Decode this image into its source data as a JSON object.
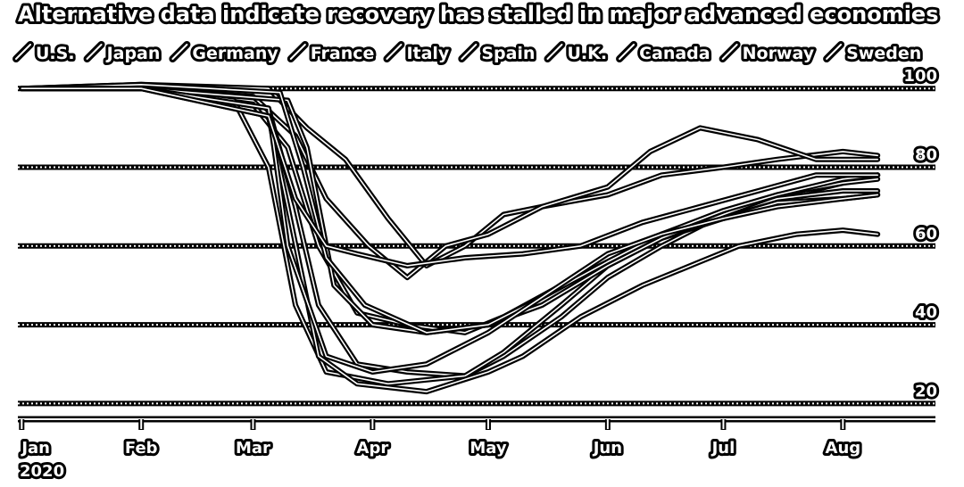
{
  "chart_data": {
    "type": "line",
    "title": "Alternative data indicate recovery has stalled in major advanced economies",
    "xlabel": "",
    "ylabel": "",
    "x_ticks": [
      {
        "label": "Jan",
        "sublabel": "2020",
        "x": "2020-01-01"
      },
      {
        "label": "Feb",
        "x": "2020-02-01"
      },
      {
        "label": "Mar",
        "x": "2020-03-01"
      },
      {
        "label": "Apr",
        "x": "2020-04-01"
      },
      {
        "label": "May",
        "x": "2020-05-01"
      },
      {
        "label": "Jun",
        "x": "2020-06-01"
      },
      {
        "label": "Jul",
        "x": "2020-07-01"
      },
      {
        "label": "Aug",
        "x": "2020-08-01"
      }
    ],
    "xlim": [
      "2019-12-31",
      "2020-08-25"
    ],
    "ylim": [
      16,
      103
    ],
    "y_ticks": [
      20,
      40,
      60,
      80,
      100
    ],
    "grid": true,
    "legend": "top",
    "series": [
      {
        "name": "U.S.",
        "points": [
          [
            "2020-01-01",
            100
          ],
          [
            "2020-02-01",
            101
          ],
          [
            "2020-03-05",
            100
          ],
          [
            "2020-03-15",
            90
          ],
          [
            "2020-03-25",
            82
          ],
          [
            "2020-04-05",
            67
          ],
          [
            "2020-04-15",
            55
          ],
          [
            "2020-04-25",
            60
          ],
          [
            "2020-05-05",
            68
          ],
          [
            "2020-05-15",
            70
          ],
          [
            "2020-06-01",
            73
          ],
          [
            "2020-06-15",
            78
          ],
          [
            "2020-07-01",
            80
          ],
          [
            "2020-07-15",
            82
          ],
          [
            "2020-08-01",
            84
          ],
          [
            "2020-08-10",
            83
          ]
        ]
      },
      {
        "name": "Japan",
        "points": [
          [
            "2020-01-01",
            100
          ],
          [
            "2020-02-01",
            100
          ],
          [
            "2020-03-01",
            98
          ],
          [
            "2020-03-12",
            88
          ],
          [
            "2020-03-20",
            72
          ],
          [
            "2020-03-31",
            60
          ],
          [
            "2020-04-10",
            52
          ],
          [
            "2020-04-20",
            60
          ],
          [
            "2020-05-01",
            63
          ],
          [
            "2020-05-15",
            70
          ],
          [
            "2020-06-01",
            75
          ],
          [
            "2020-06-12",
            84
          ],
          [
            "2020-06-25",
            90
          ],
          [
            "2020-07-10",
            87
          ],
          [
            "2020-07-25",
            82
          ],
          [
            "2020-08-10",
            82
          ]
        ]
      },
      {
        "name": "Germany",
        "points": [
          [
            "2020-01-01",
            100
          ],
          [
            "2020-02-01",
            100
          ],
          [
            "2020-03-01",
            96
          ],
          [
            "2020-03-10",
            85
          ],
          [
            "2020-03-18",
            60
          ],
          [
            "2020-03-28",
            43
          ],
          [
            "2020-04-10",
            40
          ],
          [
            "2020-04-25",
            38
          ],
          [
            "2020-05-05",
            42
          ],
          [
            "2020-05-20",
            50
          ],
          [
            "2020-06-01",
            56
          ],
          [
            "2020-06-15",
            63
          ],
          [
            "2020-07-01",
            68
          ],
          [
            "2020-07-15",
            72
          ],
          [
            "2020-08-01",
            76
          ],
          [
            "2020-08-10",
            78
          ]
        ]
      },
      {
        "name": "France",
        "points": [
          [
            "2020-01-01",
            100
          ],
          [
            "2020-02-01",
            100
          ],
          [
            "2020-03-05",
            95
          ],
          [
            "2020-03-12",
            70
          ],
          [
            "2020-03-18",
            45
          ],
          [
            "2020-03-28",
            30
          ],
          [
            "2020-04-10",
            28
          ],
          [
            "2020-04-25",
            27
          ],
          [
            "2020-05-05",
            32
          ],
          [
            "2020-05-20",
            42
          ],
          [
            "2020-06-01",
            52
          ],
          [
            "2020-06-15",
            60
          ],
          [
            "2020-07-01",
            68
          ],
          [
            "2020-07-15",
            72
          ],
          [
            "2020-08-01",
            74
          ],
          [
            "2020-08-10",
            74
          ]
        ]
      },
      {
        "name": "Italy",
        "points": [
          [
            "2020-01-01",
            100
          ],
          [
            "2020-02-01",
            100
          ],
          [
            "2020-02-25",
            97
          ],
          [
            "2020-03-05",
            80
          ],
          [
            "2020-03-12",
            45
          ],
          [
            "2020-03-20",
            28
          ],
          [
            "2020-04-05",
            25
          ],
          [
            "2020-04-25",
            27
          ],
          [
            "2020-05-05",
            33
          ],
          [
            "2020-05-20",
            45
          ],
          [
            "2020-06-01",
            55
          ],
          [
            "2020-06-15",
            62
          ],
          [
            "2020-07-01",
            67
          ],
          [
            "2020-07-15",
            71
          ],
          [
            "2020-08-01",
            72
          ],
          [
            "2020-08-10",
            73
          ]
        ]
      },
      {
        "name": "Spain",
        "points": [
          [
            "2020-01-01",
            100
          ],
          [
            "2020-02-01",
            100
          ],
          [
            "2020-03-05",
            93
          ],
          [
            "2020-03-10",
            70
          ],
          [
            "2020-03-18",
            32
          ],
          [
            "2020-03-28",
            25
          ],
          [
            "2020-04-15",
            23
          ],
          [
            "2020-05-01",
            28
          ],
          [
            "2020-05-10",
            32
          ],
          [
            "2020-05-25",
            42
          ],
          [
            "2020-06-10",
            50
          ],
          [
            "2020-06-25",
            56
          ],
          [
            "2020-07-05",
            60
          ],
          [
            "2020-07-20",
            63
          ],
          [
            "2020-08-01",
            64
          ],
          [
            "2020-08-10",
            63
          ]
        ]
      },
      {
        "name": "U.K.",
        "points": [
          [
            "2020-01-01",
            100
          ],
          [
            "2020-02-01",
            100
          ],
          [
            "2020-03-10",
            97
          ],
          [
            "2020-03-15",
            85
          ],
          [
            "2020-03-22",
            50
          ],
          [
            "2020-04-01",
            40
          ],
          [
            "2020-04-15",
            38
          ],
          [
            "2020-05-01",
            40
          ],
          [
            "2020-05-15",
            45
          ],
          [
            "2020-06-01",
            55
          ],
          [
            "2020-06-15",
            62
          ],
          [
            "2020-07-01",
            68
          ],
          [
            "2020-07-15",
            73
          ],
          [
            "2020-08-01",
            76
          ],
          [
            "2020-08-10",
            77
          ]
        ]
      },
      {
        "name": "Canada",
        "points": [
          [
            "2020-01-01",
            100
          ],
          [
            "2020-02-01",
            101
          ],
          [
            "2020-03-08",
            99
          ],
          [
            "2020-03-14",
            80
          ],
          [
            "2020-03-20",
            57
          ],
          [
            "2020-03-30",
            45
          ],
          [
            "2020-04-15",
            38
          ],
          [
            "2020-05-01",
            40
          ],
          [
            "2020-05-15",
            47
          ],
          [
            "2020-06-01",
            56
          ],
          [
            "2020-06-15",
            63
          ],
          [
            "2020-07-01",
            69
          ],
          [
            "2020-07-15",
            73
          ],
          [
            "2020-08-01",
            77
          ],
          [
            "2020-08-10",
            78
          ]
        ]
      },
      {
        "name": "Norway",
        "points": [
          [
            "2020-01-01",
            100
          ],
          [
            "2020-02-01",
            100
          ],
          [
            "2020-03-05",
            95
          ],
          [
            "2020-03-10",
            60
          ],
          [
            "2020-03-20",
            32
          ],
          [
            "2020-04-01",
            28
          ],
          [
            "2020-04-15",
            30
          ],
          [
            "2020-05-01",
            38
          ],
          [
            "2020-05-15",
            47
          ],
          [
            "2020-06-01",
            58
          ],
          [
            "2020-06-15",
            63
          ],
          [
            "2020-07-01",
            67
          ],
          [
            "2020-07-15",
            70
          ],
          [
            "2020-08-01",
            72
          ],
          [
            "2020-08-10",
            73
          ]
        ]
      },
      {
        "name": "Sweden",
        "points": [
          [
            "2020-01-01",
            100
          ],
          [
            "2020-02-01",
            100
          ],
          [
            "2020-03-05",
            93
          ],
          [
            "2020-03-12",
            72
          ],
          [
            "2020-03-20",
            60
          ],
          [
            "2020-03-28",
            58
          ],
          [
            "2020-04-10",
            55
          ],
          [
            "2020-04-25",
            57
          ],
          [
            "2020-05-10",
            58
          ],
          [
            "2020-05-25",
            60
          ],
          [
            "2020-06-10",
            66
          ],
          [
            "2020-06-25",
            70
          ],
          [
            "2020-07-10",
            74
          ],
          [
            "2020-07-25",
            78
          ],
          [
            "2020-08-10",
            78
          ]
        ]
      }
    ]
  }
}
